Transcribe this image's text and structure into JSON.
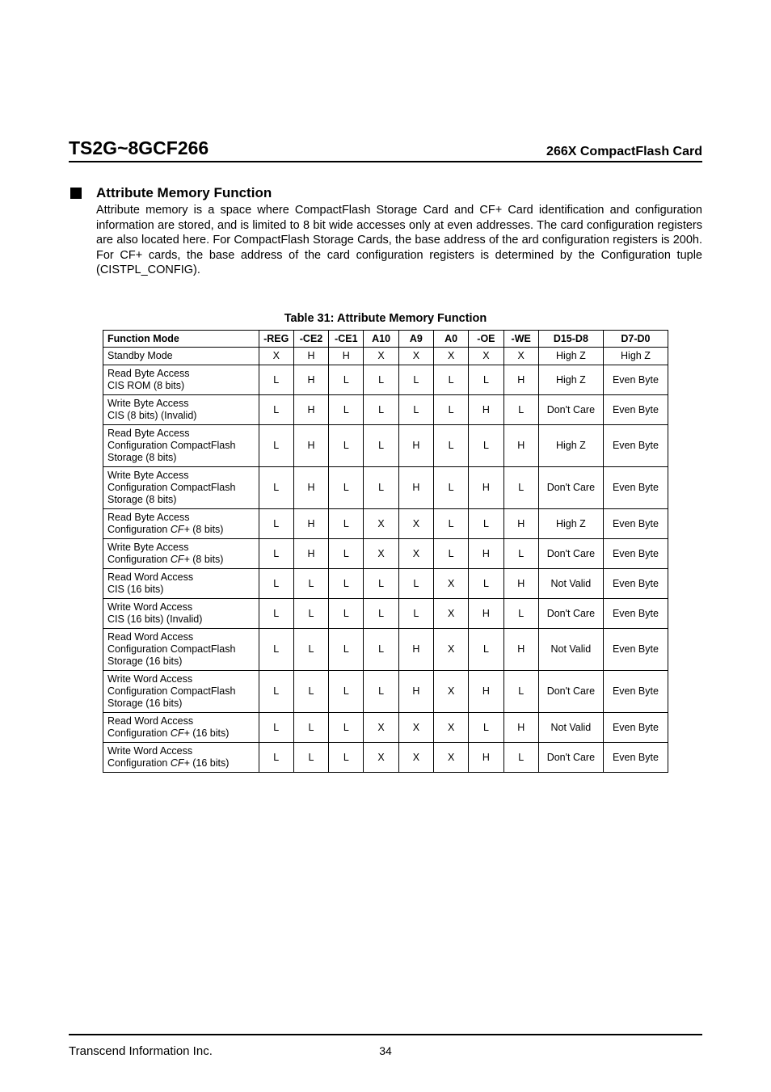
{
  "header": {
    "left": "TS2G~8GCF266",
    "right": "266X CompactFlash Card"
  },
  "section": {
    "title": "Attribute Memory Function",
    "body": "Attribute memory is a space where CompactFlash Storage Card and CF+ Card identification and configuration information are stored, and is limited to 8 bit wide accesses only at even addresses. The card configuration registers are also located here. For CompactFlash Storage Cards, the base address of the ard configuration registers is 200h. For CF+ cards, the base address of the card configuration registers is determined by the Configuration tuple (CISTPL_CONFIG)."
  },
  "table": {
    "caption": "Table 31: Attribute Memory Function",
    "columns": [
      "Function Mode",
      "-REG",
      "-CE2",
      "-CE1",
      "A10",
      "A9",
      "A0",
      "-OE",
      "-WE",
      "D15-D8",
      "D7-D0"
    ],
    "rows": [
      {
        "mode": "Standby Mode",
        "v": [
          "X",
          "H",
          "H",
          "X",
          "X",
          "X",
          "X",
          "X",
          "High Z",
          "High Z"
        ]
      },
      {
        "mode": "Read Byte Access\nCIS ROM (8 bits)",
        "v": [
          "L",
          "H",
          "L",
          "L",
          "L",
          "L",
          "L",
          "H",
          "High Z",
          "Even Byte"
        ]
      },
      {
        "mode": "Write Byte Access\nCIS (8 bits) (Invalid)",
        "v": [
          "L",
          "H",
          "L",
          "L",
          "L",
          "L",
          "H",
          "L",
          "Don't Care",
          "Even Byte"
        ]
      },
      {
        "mode": "Read Byte Access\nConfiguration CompactFlash\nStorage (8 bits)",
        "v": [
          "L",
          "H",
          "L",
          "L",
          "H",
          "L",
          "L",
          "H",
          "High Z",
          "Even Byte"
        ]
      },
      {
        "mode": "Write Byte Access\nConfiguration CompactFlash\nStorage (8 bits)",
        "v": [
          "L",
          "H",
          "L",
          "L",
          "H",
          "L",
          "H",
          "L",
          "Don't Care",
          "Even Byte"
        ]
      },
      {
        "mode": "Read Byte Access\nConfiguration CF+ (8 bits)",
        "v": [
          "L",
          "H",
          "L",
          "X",
          "X",
          "L",
          "L",
          "H",
          "High Z",
          "Even Byte"
        ]
      },
      {
        "mode": "Write Byte Access\nConfiguration CF+ (8 bits)",
        "v": [
          "L",
          "H",
          "L",
          "X",
          "X",
          "L",
          "H",
          "L",
          "Don't Care",
          "Even Byte"
        ]
      },
      {
        "mode": "Read Word Access\nCIS (16 bits)",
        "v": [
          "L",
          "L",
          "L",
          "L",
          "L",
          "X",
          "L",
          "H",
          "Not Valid",
          "Even Byte"
        ]
      },
      {
        "mode": "Write Word Access\nCIS (16 bits) (Invalid)",
        "v": [
          "L",
          "L",
          "L",
          "L",
          "L",
          "X",
          "H",
          "L",
          "Don't Care",
          "Even Byte"
        ]
      },
      {
        "mode": "Read Word Access\nConfiguration CompactFlash\nStorage (16 bits)",
        "v": [
          "L",
          "L",
          "L",
          "L",
          "H",
          "X",
          "L",
          "H",
          "Not Valid",
          "Even Byte"
        ]
      },
      {
        "mode": "Write Word Access\nConfiguration CompactFlash\nStorage (16 bits)",
        "v": [
          "L",
          "L",
          "L",
          "L",
          "H",
          "X",
          "H",
          "L",
          "Don't Care",
          "Even Byte"
        ]
      },
      {
        "mode": "Read Word Access\nConfiguration CF+ (16 bits)",
        "v": [
          "L",
          "L",
          "L",
          "X",
          "X",
          "X",
          "L",
          "H",
          "Not Valid",
          "Even Byte"
        ]
      },
      {
        "mode": "Write Word Access\nConfiguration CF+ (16 bits)",
        "v": [
          "L",
          "L",
          "L",
          "X",
          "X",
          "X",
          "H",
          "L",
          "Don't Care",
          "Even Byte"
        ]
      }
    ]
  },
  "footer": {
    "company": "Transcend Information Inc.",
    "page": "34"
  }
}
